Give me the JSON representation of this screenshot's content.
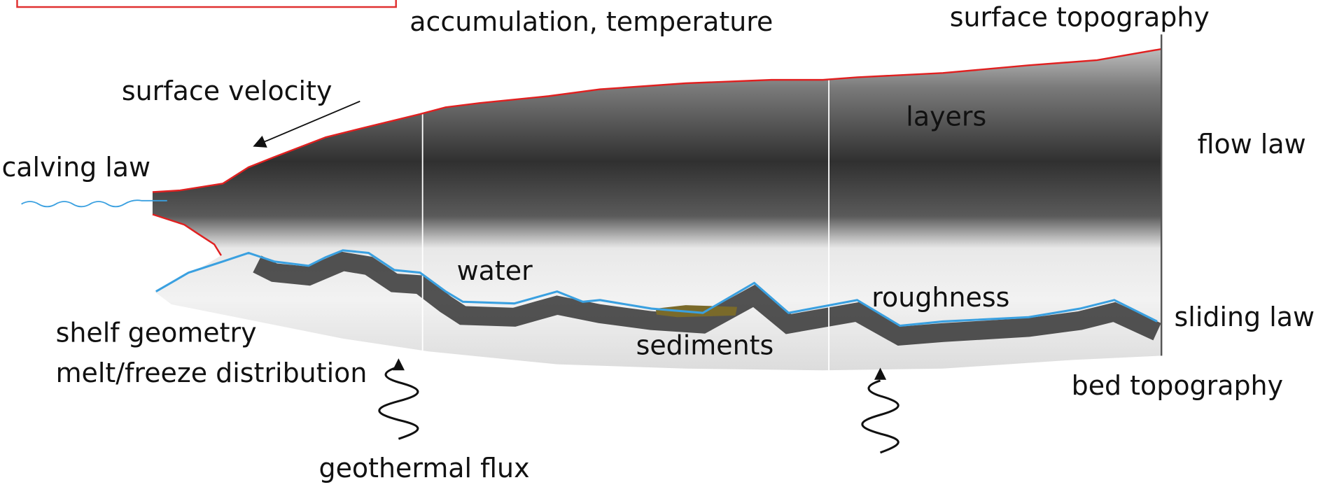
{
  "labels": {
    "accumulation": "accumulation, temperature",
    "surface_topography": "surface topography",
    "surface_velocity": "surface velocity",
    "layers": "layers",
    "flow_law": "flow law",
    "calving_law": "calving law",
    "water": "water",
    "roughness": "roughness",
    "sliding_law": "sliding law",
    "shelf_geometry": "shelf geometry",
    "melt_freeze": "melt/freeze distribution",
    "sediments": "sediments",
    "bed_topography": "bed topography",
    "geothermal_flux": "geothermal flux"
  }
}
